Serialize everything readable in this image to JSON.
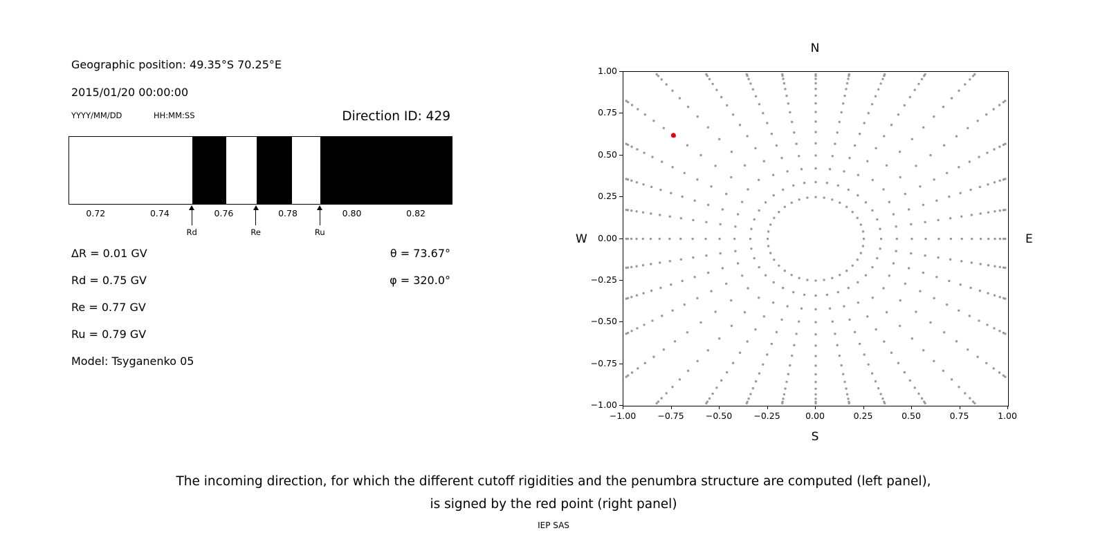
{
  "info": {
    "geographic_position": "Geographic position: 49.35°S 70.25°E",
    "timestamp": "2015/01/20 00:00:00",
    "date_format_hint": "YYYY/MM/DD",
    "time_format_hint": "HH:MM:SS",
    "direction_id": "Direction ID: 429",
    "delta_r": "ΔR = 0.01 GV",
    "rd": "Rd = 0.75 GV",
    "re": "Re = 0.77 GV",
    "ru": "Ru = 0.79 GV",
    "model": "Model: Tsyganenko 05",
    "theta": "θ = 73.67°",
    "phi": "φ = 320.0°"
  },
  "caption": {
    "line1": "The incoming direction, for which the different cutoff rigidities and the penumbra structure are computed (left panel),",
    "line2": "is signed by the red point (right panel)",
    "credit": "IEP SAS"
  },
  "chart_data": [
    {
      "id": "penumbra-structure",
      "type": "bar",
      "title": "",
      "xlabel": "",
      "ylabel": "",
      "x_range": [
        0.7115,
        0.831
      ],
      "ticks": [
        0.72,
        0.74,
        0.76,
        0.78,
        0.8,
        0.82
      ],
      "tick_labels": [
        "0.72",
        "0.74",
        "0.76",
        "0.78",
        "0.80",
        "0.82"
      ],
      "forbidden_bands": [
        [
          0.75,
          0.7605
        ],
        [
          0.77,
          0.781
        ],
        [
          0.79,
          0.831
        ]
      ],
      "markers": [
        {
          "label": "Rd",
          "value": 0.75
        },
        {
          "label": "Re",
          "value": 0.77
        },
        {
          "label": "Ru",
          "value": 0.79
        }
      ],
      "colors": {
        "allowed": "#ffffff",
        "forbidden": "#000000"
      },
      "note": "Penumbra structure vs rigidity (GV): white = allowed, black = forbidden; Rd=0.75 GV, Re=0.77 GV, Ru=0.79 GV"
    },
    {
      "id": "incoming-direction-map",
      "type": "scatter",
      "xlim": [
        -1.0,
        1.0
      ],
      "ylim": [
        -1.0,
        1.0
      ],
      "x_ticks": [
        -1.0,
        -0.75,
        -0.5,
        -0.25,
        0.0,
        0.25,
        0.5,
        0.75,
        1.0
      ],
      "x_tick_labels": [
        "−1.00",
        "−0.75",
        "−0.50",
        "−0.25",
        "0.00",
        "0.25",
        "0.50",
        "0.75",
        "1.00"
      ],
      "y_ticks": [
        1.0,
        0.75,
        0.5,
        0.25,
        0.0,
        -0.25,
        -0.5,
        -0.75,
        -1.0
      ],
      "y_tick_labels": [
        "1.00",
        "0.75",
        "0.50",
        "0.25",
        "0.00",
        "−0.25",
        "−0.50",
        "−0.75",
        "−1.00"
      ],
      "compass": {
        "top": "N",
        "bottom": "S",
        "left": "W",
        "right": "E"
      },
      "dot_color": "#999999",
      "dot_radius_px": 1.7,
      "grid_spec": {
        "spoke_step_deg": 10,
        "inner_ring_radius": 0.25,
        "spoke_start_radius": 0.34,
        "dots_per_spoke": 13,
        "density_power": 1.7,
        "edge_inset": 0.985
      },
      "red_point": {
        "x": -0.74,
        "y": 0.62,
        "color": "#e8000b",
        "radius_px": 3.5
      },
      "note": "Grey dots: 36 radial direction spokes every 10° from an inner ring at r=0.25 out to the plot edge, spacing shrinking outward. Red point marks the incoming direction (θ=73.67°, φ=320.0°)."
    }
  ]
}
